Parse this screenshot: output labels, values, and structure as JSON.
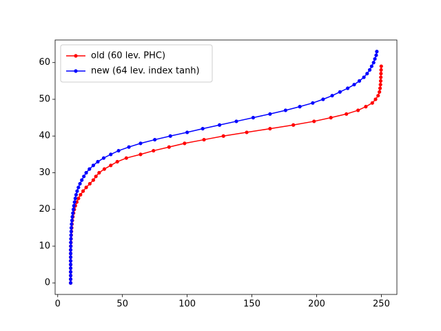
{
  "chart_data": {
    "type": "line",
    "xlim": [
      -2,
      262
    ],
    "ylim": [
      -3.15,
      66.15
    ],
    "xticks": [
      0,
      50,
      100,
      150,
      200,
      250
    ],
    "yticks": [
      0,
      10,
      20,
      30,
      40,
      50,
      60
    ],
    "legend": "upper left",
    "series": [
      {
        "name": "old (60 lev. PHC)",
        "color": "#ff0000",
        "x": [
          10,
          10,
          10,
          10,
          10,
          10,
          10,
          10,
          10,
          10,
          10.1,
          10.2,
          10.3,
          10.4,
          10.6,
          10.8,
          11,
          11.3,
          11.7,
          12.2,
          12.8,
          13.6,
          14.7,
          16,
          17.6,
          19.6,
          22,
          24.8,
          27.5,
          29.5,
          32,
          36,
          41,
          46,
          53,
          64,
          74,
          86,
          98,
          113,
          128,
          146,
          164,
          182,
          198,
          211,
          223,
          232,
          238,
          243,
          245.5,
          247.5,
          248.5,
          249,
          249.3,
          249.5,
          249.6,
          249.7,
          249.8,
          249.9
        ],
        "values": [
          0,
          1,
          2,
          3,
          4,
          5,
          6,
          7,
          8,
          9,
          10,
          11,
          12,
          13,
          14,
          15,
          16,
          17,
          18,
          19,
          20,
          21,
          22,
          23,
          24,
          25,
          26,
          27,
          28,
          29,
          30,
          31,
          32,
          33,
          34,
          35,
          36,
          37,
          38,
          39,
          40,
          41,
          42,
          43,
          44,
          45,
          46,
          47,
          48,
          49,
          50,
          51,
          52,
          53,
          54,
          55,
          56,
          57,
          58,
          59
        ]
      },
      {
        "name": "new (64 lev. index tanh)",
        "color": "#0000ff",
        "x": [
          10,
          10,
          10,
          10,
          10,
          10,
          10,
          10,
          10,
          10,
          10.1,
          10.1,
          10.2,
          10.3,
          10.4,
          10.5,
          10.7,
          11,
          11.3,
          11.7,
          12.1,
          12.5,
          13,
          13.6,
          14.2,
          15,
          16,
          17.2,
          18.6,
          20.2,
          22,
          24.5,
          27.5,
          31,
          35.5,
          41,
          47,
          55,
          64,
          75,
          87,
          100,
          112,
          125,
          138,
          151,
          164,
          176,
          187,
          197,
          205,
          212,
          218,
          224,
          229,
          233,
          236.5,
          239,
          241,
          242.5,
          244,
          245,
          246,
          246.5
        ],
        "values": [
          0,
          1,
          2,
          3,
          4,
          5,
          6,
          7,
          8,
          9,
          10,
          11,
          12,
          13,
          14,
          15,
          16,
          17,
          18,
          19,
          20,
          21,
          22,
          23,
          24,
          25,
          26,
          27,
          28,
          29,
          30,
          31,
          32,
          33,
          34,
          35,
          36,
          37,
          38,
          39,
          40,
          41,
          42,
          43,
          44,
          45,
          46,
          47,
          48,
          49,
          50,
          51,
          52,
          53,
          54,
          55,
          56,
          57,
          58,
          59,
          60,
          61,
          62,
          63
        ]
      }
    ]
  }
}
